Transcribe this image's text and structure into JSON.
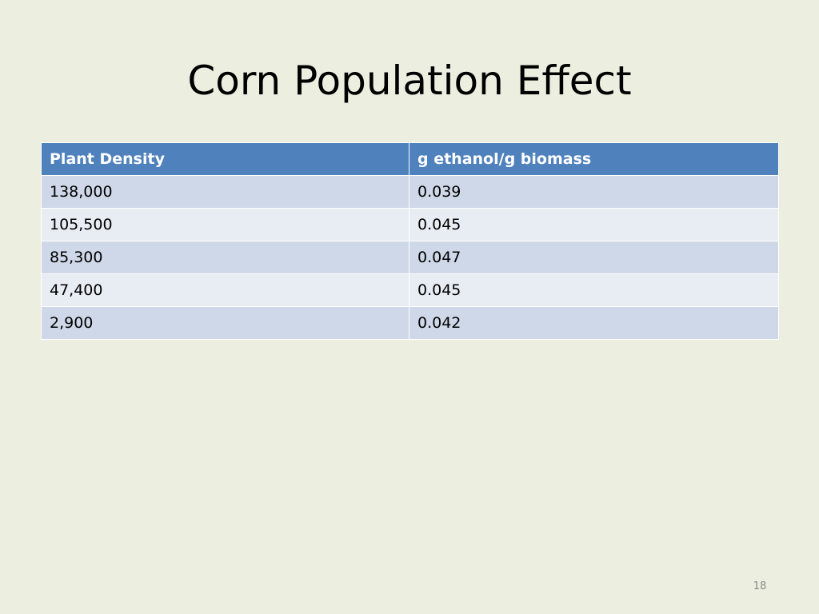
{
  "slide": {
    "title": "Corn Population Effect",
    "number": "18"
  },
  "table": {
    "headers": [
      "Plant Density",
      "g ethanol/g biomass"
    ],
    "rows": [
      [
        "138,000",
        "0.039"
      ],
      [
        "105,500",
        "0.045"
      ],
      [
        "85,300",
        "0.047"
      ],
      [
        "47,400",
        "0.045"
      ],
      [
        "2,900",
        "0.042"
      ]
    ]
  },
  "colors": {
    "background": "#ecefdf",
    "header_fill": "#4f81bd",
    "row_band_dark": "#cfd8e8",
    "row_band_light": "#e8ecf3"
  }
}
